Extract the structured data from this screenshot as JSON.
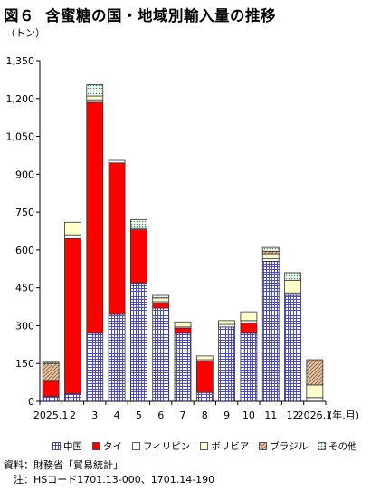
{
  "header": {
    "figure_no": "図６",
    "title": "含蜜糖の国・地域別輸入量の推移"
  },
  "notes": {
    "source": "資料：財務省「貿易統計」",
    "note": "注：HSコード1701.13-000、1701.14-190"
  },
  "chart_data": {
    "type": "bar",
    "stacked": true,
    "ylabel": "（トン）",
    "xlabel": "(年.月)",
    "ylim": [
      0,
      1350
    ],
    "yticks": [
      0,
      150,
      300,
      450,
      600,
      750,
      900,
      1050,
      1200,
      1350
    ],
    "ytick_labels": [
      "0",
      "150",
      "300",
      "450",
      "600",
      "750",
      "900",
      "1,050",
      "1,200",
      "1,350"
    ],
    "categories": [
      "2025.1",
      "2",
      "3",
      "4",
      "5",
      "6",
      "7",
      "8",
      "9",
      "10",
      "11",
      "12",
      "2026.1"
    ],
    "series": [
      {
        "name": "中国",
        "color": "#5b5bd6",
        "pattern": "grid",
        "values": [
          20,
          30,
          270,
          345,
          470,
          370,
          270,
          35,
          295,
          270,
          555,
          420,
          0
        ]
      },
      {
        "name": "タイ",
        "color": "#ff0000",
        "pattern": "solid",
        "values": [
          60,
          615,
          915,
          600,
          210,
          20,
          20,
          125,
          0,
          40,
          0,
          0,
          0
        ]
      },
      {
        "name": "フィリピン",
        "color": "#ffffff",
        "pattern": "white",
        "values": [
          0,
          15,
          10,
          10,
          5,
          5,
          5,
          5,
          10,
          10,
          10,
          10,
          15
        ]
      },
      {
        "name": "ボリビア",
        "color": "#ffffcc",
        "pattern": "cream",
        "values": [
          0,
          50,
          15,
          0,
          0,
          15,
          20,
          15,
          15,
          30,
          20,
          50,
          50
        ]
      },
      {
        "name": "ブラジル",
        "color": "#c8946c",
        "pattern": "diagonal",
        "values": [
          70,
          0,
          0,
          0,
          0,
          0,
          0,
          0,
          0,
          0,
          10,
          0,
          100
        ]
      },
      {
        "name": "その他",
        "color": "#e6d2f0",
        "pattern": "dotted",
        "values": [
          5,
          0,
          45,
          0,
          35,
          10,
          0,
          0,
          0,
          5,
          15,
          30,
          0
        ]
      }
    ],
    "grid": false,
    "legend_position": "bottom"
  }
}
